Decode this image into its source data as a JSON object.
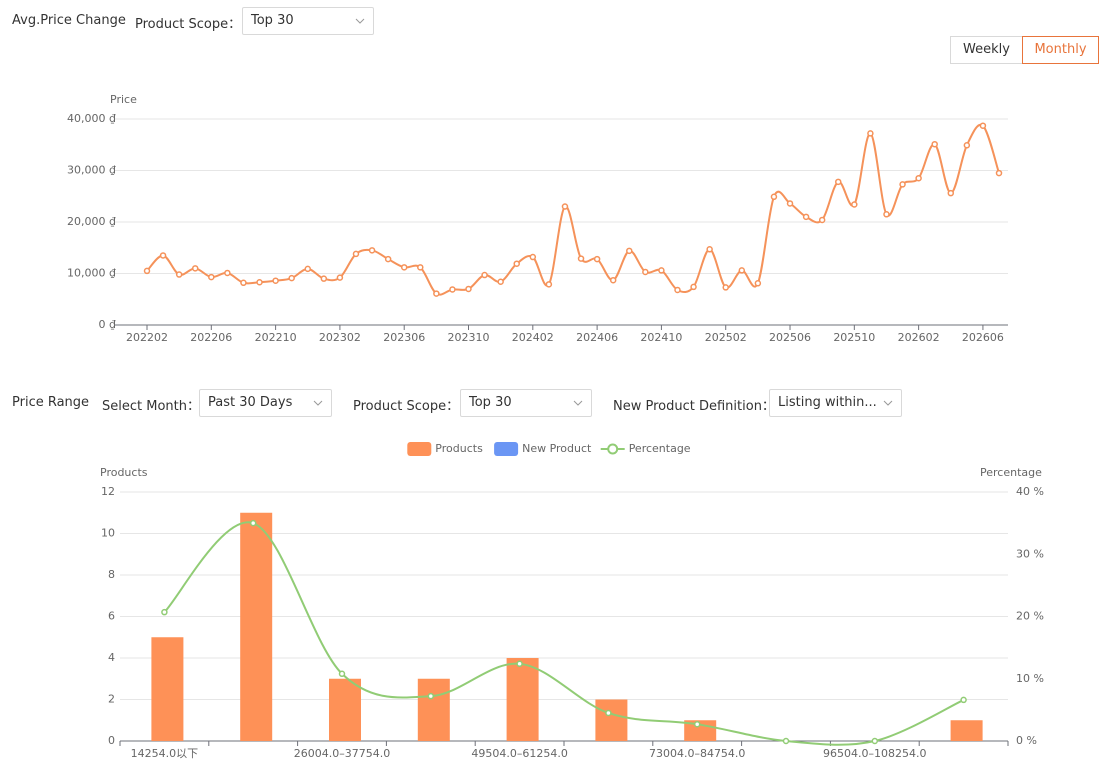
{
  "header": {
    "title": "Avg.Price Change",
    "scope_label": "Product Scope：",
    "scope_value": "Top 30",
    "toggle": [
      "Weekly",
      "Monthly"
    ]
  },
  "filters": {
    "title": "Price Range",
    "month_label": "Select Month：",
    "month_value": "Past 30 Days",
    "scope_label": "Product Scope：",
    "scope_value": "Top 30",
    "definition_label": "New Product Definition：",
    "definition_value": "Listing within..."
  },
  "chart_data": [
    {
      "type": "line",
      "y_label": "Price",
      "color": "#f5925a",
      "grid": true,
      "categories": [
        "202202",
        null,
        null,
        null,
        "202206",
        null,
        null,
        null,
        "202210",
        null,
        null,
        null,
        "202302",
        null,
        null,
        null,
        "202306",
        null,
        null,
        null,
        "202310",
        null,
        null,
        null,
        "202402",
        null,
        null,
        null,
        "202406",
        null,
        null,
        null,
        "202410",
        null,
        null,
        null,
        "202502",
        null,
        null,
        null,
        "202506",
        null,
        null,
        null,
        "202510",
        null,
        null,
        null,
        "202602",
        null,
        null,
        null,
        "202606",
        null
      ],
      "values": [
        10500,
        13500,
        9800,
        11000,
        9300,
        10100,
        8200,
        8300,
        8600,
        9100,
        10900,
        9000,
        9200,
        13800,
        14500,
        12800,
        11200,
        11200,
        6100,
        6900,
        7000,
        9700,
        8400,
        11900,
        13200,
        7900,
        23000,
        12900,
        12800,
        8700,
        14400,
        10300,
        10600,
        6800,
        7400,
        14700,
        7300,
        10600,
        8100,
        24900,
        23600,
        21000,
        20400,
        27800,
        23400,
        37200,
        21500,
        27300,
        28500,
        35100,
        25600,
        34900,
        38700,
        29500
      ],
      "ylim": [
        0,
        40000
      ],
      "yticks": [
        {
          "value": 0,
          "label": "0 ₫"
        },
        {
          "value": 10000,
          "label": "10,000 ₫"
        },
        {
          "value": 20000,
          "label": "20,000 ₫"
        },
        {
          "value": 30000,
          "label": "30,000 ₫"
        },
        {
          "value": 40000,
          "label": "40,000 ₫"
        }
      ]
    },
    {
      "type": "bar",
      "y_label": "Products",
      "y2_label": "Percentage",
      "grid": true,
      "legend": "top",
      "categories": [
        "14254.0以下",
        null,
        "26004.0–37754.0",
        null,
        "49504.0–61254.0",
        null,
        "73004.0–84754.0",
        null,
        "96504.0–108254.0",
        null
      ],
      "series": [
        {
          "name": "Products",
          "color": "#fe9157",
          "values": [
            5,
            11,
            3,
            3,
            4,
            2,
            1,
            0,
            0,
            1
          ]
        },
        {
          "name": "New Product",
          "color": "#6b96f4",
          "values": [
            0,
            0,
            0,
            0,
            0,
            0,
            0,
            0,
            0,
            0
          ]
        },
        {
          "name": "Percentage",
          "color": "#91cc75",
          "axis": "y2",
          "values": [
            20.7,
            35,
            10.8,
            7.2,
            12.4,
            4.5,
            2.7,
            0,
            0,
            6.6
          ]
        }
      ],
      "ylim": [
        0,
        12
      ],
      "yticks": [
        0,
        2,
        4,
        6,
        8,
        10,
        12
      ],
      "y2lim": [
        0,
        40
      ],
      "y2ticks": [
        {
          "value": 0,
          "label": "0 %"
        },
        {
          "value": 10,
          "label": "10 %"
        },
        {
          "value": 20,
          "label": "20 %"
        },
        {
          "value": 30,
          "label": "30 %"
        },
        {
          "value": 40,
          "label": "40 %"
        }
      ]
    }
  ]
}
